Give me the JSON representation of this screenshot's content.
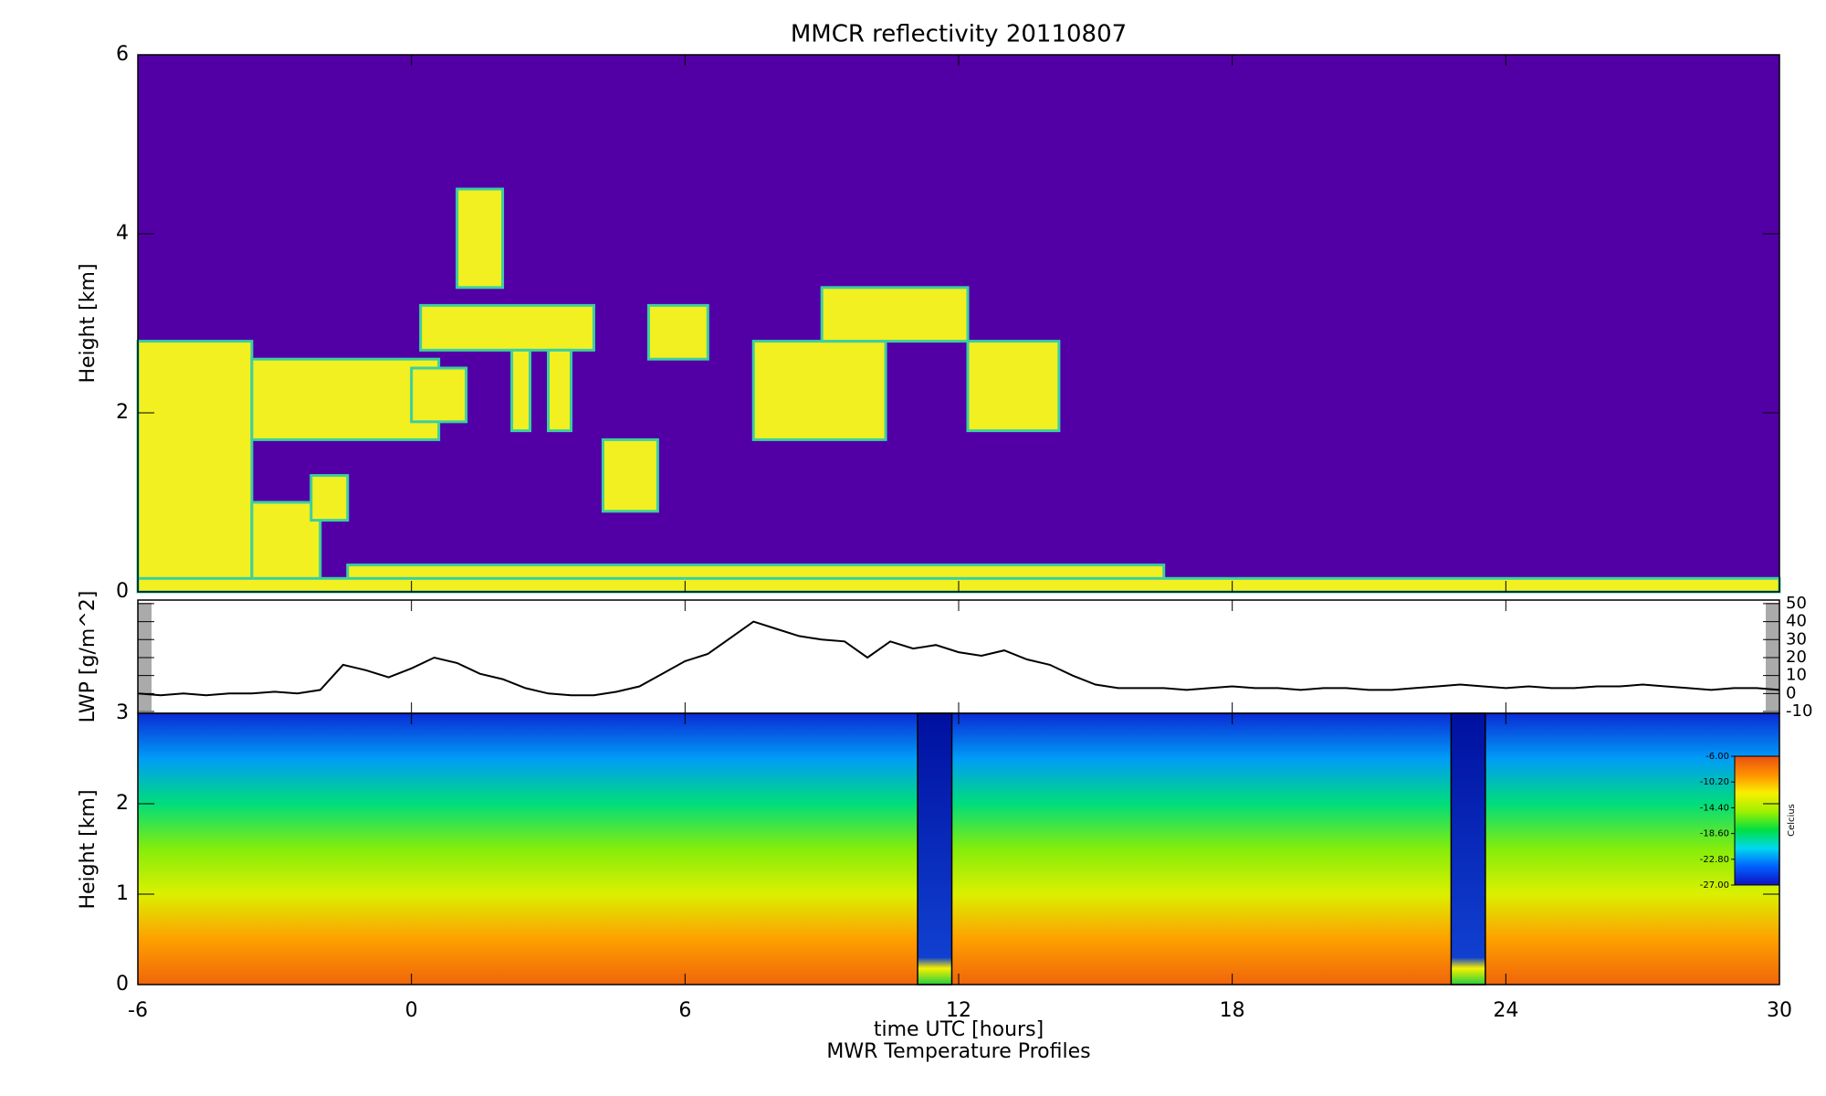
{
  "chart_data": [
    {
      "type": "heatmap",
      "title": "MMCR reflectivity     20110807",
      "ylabel": "Height [km]",
      "xlim": [
        -6,
        30
      ],
      "xticks": [
        -6,
        0,
        6,
        12,
        18,
        24,
        30
      ],
      "ylim": [
        0,
        6
      ],
      "yticks": [
        0,
        2,
        4,
        6
      ],
      "background": "#5200a6",
      "color": "#f2f020",
      "edge_color": "#3ccfa0",
      "cloud_boxes": [
        {
          "x": [
            -6,
            -3.5
          ],
          "y": [
            0.1,
            2.8
          ]
        },
        {
          "x": [
            -3.5,
            -2
          ],
          "y": [
            0.1,
            1.0
          ]
        },
        {
          "x": [
            -3.5,
            0.6
          ],
          "y": [
            1.7,
            2.6
          ]
        },
        {
          "x": [
            0,
            1.2
          ],
          "y": [
            1.9,
            2.5
          ]
        },
        {
          "x": [
            0.2,
            4.0
          ],
          "y": [
            2.7,
            3.2
          ]
        },
        {
          "x": [
            1.0,
            2.0
          ],
          "y": [
            3.4,
            4.5
          ]
        },
        {
          "x": [
            2.2,
            2.6
          ],
          "y": [
            1.8,
            2.7
          ]
        },
        {
          "x": [
            3.0,
            3.5
          ],
          "y": [
            1.8,
            2.7
          ]
        },
        {
          "x": [
            5.2,
            6.5
          ],
          "y": [
            2.6,
            3.2
          ]
        },
        {
          "x": [
            4.2,
            5.4
          ],
          "y": [
            0.9,
            1.7
          ]
        },
        {
          "x": [
            7.5,
            10.4
          ],
          "y": [
            1.7,
            2.8
          ]
        },
        {
          "x": [
            9.0,
            12.2
          ],
          "y": [
            2.8,
            3.4
          ]
        },
        {
          "x": [
            12.2,
            14.2
          ],
          "y": [
            1.8,
            2.8
          ]
        },
        {
          "x": [
            -2.2,
            -1.4
          ],
          "y": [
            0.8,
            1.3
          ]
        },
        {
          "x": [
            -1.4,
            16.5
          ],
          "y": [
            0.1,
            0.3
          ]
        },
        {
          "x": [
            -6,
            30
          ],
          "y": [
            0,
            0.15
          ]
        }
      ]
    },
    {
      "type": "line",
      "ylabel": "LWP [g/m^2]",
      "xlim": [
        -6,
        30
      ],
      "xticks": [
        -6,
        0,
        6,
        12,
        18,
        24,
        30
      ],
      "ylim": [
        -11,
        52
      ],
      "yticks": [
        -10,
        0,
        10,
        20,
        30,
        40,
        50
      ],
      "color": "#000000",
      "x": [
        -6,
        -5.5,
        -5,
        -4.5,
        -4,
        -3.5,
        -3,
        -2.5,
        -2,
        -1.5,
        -1,
        -0.5,
        0,
        0.5,
        1,
        1.5,
        2,
        2.5,
        3,
        3.5,
        4,
        4.5,
        5,
        5.5,
        6,
        6.5,
        7,
        7.5,
        8,
        8.5,
        9,
        9.5,
        10,
        10.5,
        11,
        11.5,
        12,
        12.5,
        13,
        13.5,
        14,
        14.5,
        15,
        15.5,
        16,
        16.5,
        17,
        17.5,
        18,
        18.5,
        19,
        19.5,
        20,
        20.5,
        21,
        21.5,
        22,
        22.5,
        23,
        23.5,
        24,
        24.5,
        25,
        25.5,
        26,
        26.5,
        27,
        27.5,
        28,
        28.5,
        29,
        29.5,
        30
      ],
      "values": [
        0,
        -1,
        0,
        -1,
        0,
        0,
        1,
        0,
        2,
        16,
        13,
        9,
        14,
        20,
        17,
        11,
        8,
        3,
        0,
        -1,
        -1,
        1,
        4,
        11,
        18,
        22,
        31,
        40,
        36,
        32,
        30,
        29,
        20,
        29,
        25,
        27,
        23,
        21,
        24,
        19,
        16,
        10,
        5,
        3,
        3,
        3,
        2,
        3,
        4,
        3,
        3,
        2,
        3,
        3,
        2,
        2,
        3,
        4,
        5,
        4,
        3,
        4,
        3,
        3,
        4,
        4,
        5,
        4,
        3,
        2,
        3,
        3,
        2
      ]
    },
    {
      "type": "contour",
      "ylabel": "Height [km]",
      "xlabel": "time UTC [hours]",
      "subtitle": "MWR Temperature Profiles",
      "xlim": [
        -6,
        30
      ],
      "xticks": [
        -6,
        0,
        6,
        12,
        18,
        24,
        30
      ],
      "ylim": [
        0,
        3
      ],
      "yticks": [
        0,
        1,
        2,
        3
      ],
      "heights": [
        0,
        0.5,
        1,
        1.5,
        2,
        2.5,
        3
      ],
      "temperatures": [
        -7,
        -9.5,
        -13,
        -15.5,
        -19,
        -22.5,
        -26
      ],
      "gaps": [
        [
          11.1,
          11.85
        ],
        [
          22.8,
          23.55
        ]
      ],
      "colormap": [
        "#1010c0",
        "#0060ff",
        "#00d8f0",
        "#00e040",
        "#a0f000",
        "#f8f000",
        "#ff9000",
        "#e85010"
      ],
      "colorbar": {
        "label": "Celcius",
        "clim": [
          -27,
          -6
        ],
        "ticks": [
          {
            "value": -6,
            "label": "-6.00"
          },
          {
            "value": -10.2,
            "label": "-10.20"
          },
          {
            "value": -14.4,
            "label": "-14.40"
          },
          {
            "value": -18.6,
            "label": "-18.60"
          },
          {
            "value": -22.8,
            "label": "-22.80"
          },
          {
            "value": -27,
            "label": "-27.00"
          }
        ]
      }
    }
  ]
}
